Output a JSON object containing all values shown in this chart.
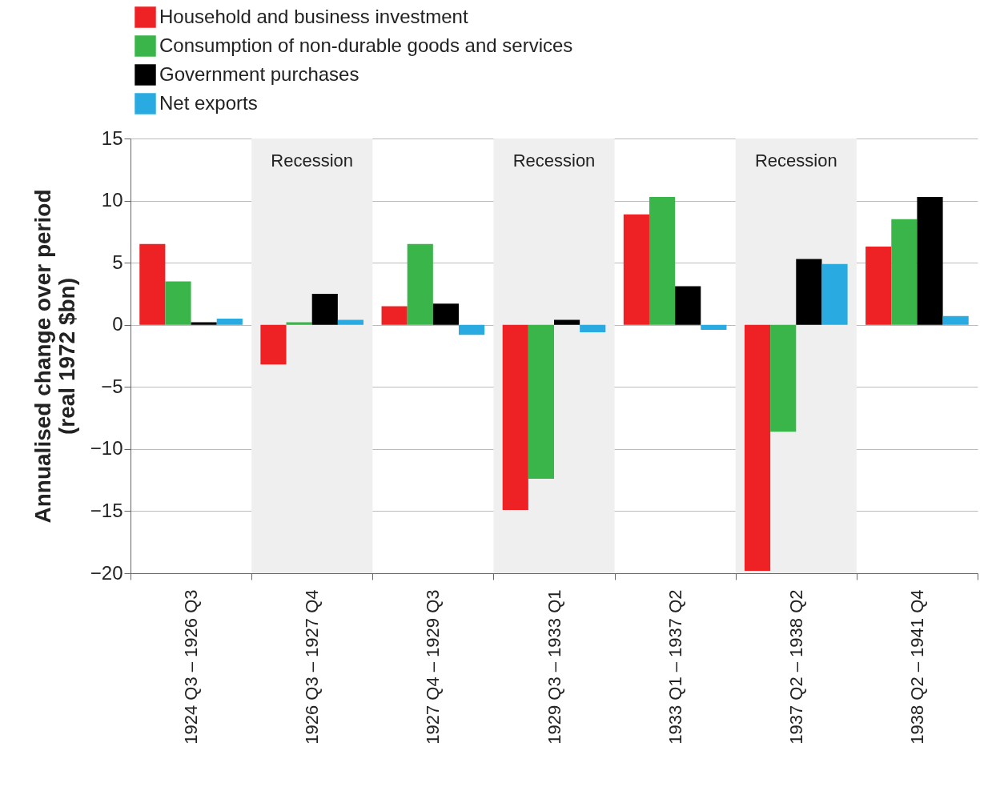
{
  "chart_data": {
    "type": "bar",
    "ylabel": "Annualised change over period\n(real 1972 $bn)",
    "categories": [
      "1924 Q3 – 1926 Q3",
      "1926 Q3 – 1927 Q4",
      "1927 Q4 – 1929 Q3",
      "1929 Q3 – 1933 Q1",
      "1933 Q1 – 1937 Q2",
      "1937 Q2 – 1938 Q2",
      "1938 Q2 – 1941 Q4"
    ],
    "series": [
      {
        "name": "Household and business investment",
        "color": "#ee2224",
        "values": [
          6.5,
          -3.2,
          1.5,
          -14.9,
          8.9,
          -19.8,
          6.3
        ]
      },
      {
        "name": "Consumption of non-durable goods and services",
        "color": "#3ab54a",
        "values": [
          3.5,
          0.2,
          6.5,
          -12.4,
          10.3,
          -8.6,
          8.5
        ]
      },
      {
        "name": "Government purchases",
        "color": "#000000",
        "values": [
          0.2,
          2.5,
          1.7,
          0.4,
          3.1,
          5.3,
          10.3
        ]
      },
      {
        "name": "Net exports",
        "color": "#29abe2",
        "values": [
          0.5,
          0.4,
          -0.8,
          -0.6,
          -0.4,
          4.9,
          0.7
        ]
      }
    ],
    "ylim": [
      -20,
      15
    ],
    "yticks": [
      -20,
      -15,
      -10,
      -5,
      0,
      5,
      10,
      15
    ],
    "grid": "y",
    "legend": "top left",
    "bands": [
      {
        "axis": "x",
        "from": "1926 Q3 – 1927 Q4",
        "to": "1926 Q3 – 1927 Q4",
        "label": "Recession",
        "color": "#efefef"
      },
      {
        "axis": "x",
        "from": "1929 Q3 – 1933 Q1",
        "to": "1929 Q3 – 1933 Q1",
        "label": "Recession",
        "color": "#efefef"
      },
      {
        "axis": "x",
        "from": "1937 Q2 – 1938 Q2",
        "to": "1937 Q2 – 1938 Q2",
        "label": "Recession",
        "color": "#efefef"
      }
    ]
  }
}
